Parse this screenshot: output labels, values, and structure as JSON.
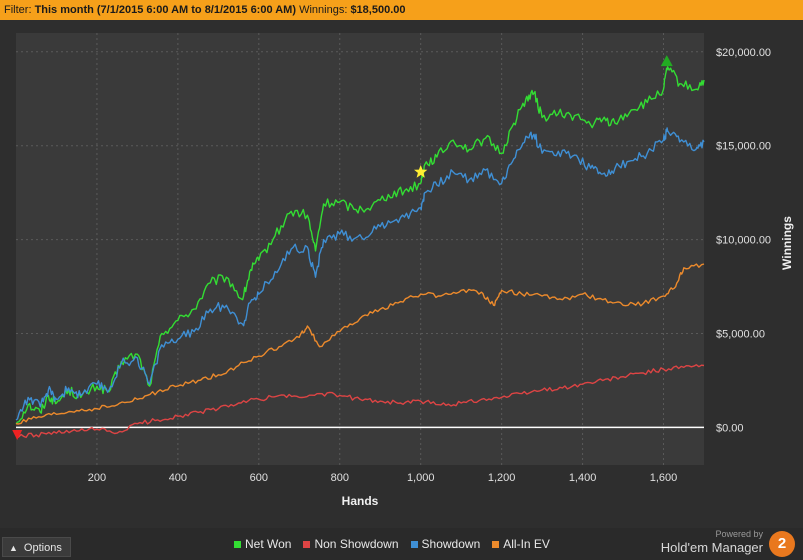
{
  "filter": {
    "label": "Filter:",
    "period": "This month (7/1/2015 6:00 AM to 8/1/2015 6:00 AM)",
    "winnings_label": "Winnings:",
    "winnings_value": "$18,500.00"
  },
  "footer": {
    "options_label": "Options",
    "powered_by": "Powered by",
    "brand_name": "Hold'em Manager",
    "brand_logo_text": "2"
  },
  "colors": {
    "background": "#2e2e2e",
    "filter_bar": "#f6a01a",
    "net_won": "#33dd33",
    "non_showdown": "#dd4444",
    "showdown": "#3f8fd4",
    "all_in_ev": "#ec8a2c",
    "zero_line": "#ffffff",
    "grid": "#5a5a5a"
  },
  "chart_data": {
    "type": "line",
    "xlabel": "Hands",
    "ylabel": "Winnings",
    "xlim": [
      0,
      1700
    ],
    "ylim": [
      -2000,
      21000
    ],
    "x_ticks": [
      200,
      400,
      600,
      800,
      1000,
      1200,
      1400,
      1600
    ],
    "x_tick_labels": [
      "200",
      "400",
      "600",
      "800",
      "1,000",
      "1,200",
      "1,400",
      "1,600"
    ],
    "y_ticks": [
      0,
      5000,
      10000,
      15000,
      20000
    ],
    "y_tick_labels": [
      "$0.00",
      "$5,000.00",
      "$10,000.00",
      "$15,000.00",
      "$20,000.00"
    ],
    "grid": true,
    "legend_position": "bottom",
    "markers": [
      {
        "name": "min-marker",
        "shape": "triangle-down",
        "color": "#ee2222",
        "x": 3,
        "y": -400
      },
      {
        "name": "star-marker",
        "shape": "star",
        "color": "#ffee33",
        "x": 1000,
        "y": 13600
      },
      {
        "name": "max-marker",
        "shape": "triangle-up",
        "color": "#22aa22",
        "x": 1608,
        "y": 19500
      }
    ],
    "series": [
      {
        "name": "Net Won",
        "color": "#33dd33",
        "x": [
          0,
          30,
          60,
          80,
          100,
          130,
          160,
          200,
          230,
          260,
          300,
          330,
          360,
          400,
          440,
          480,
          520,
          560,
          580,
          600,
          640,
          680,
          720,
          740,
          760,
          800,
          840,
          880,
          920,
          960,
          1000,
          1010,
          1040,
          1080,
          1120,
          1160,
          1200,
          1230,
          1260,
          1280,
          1300,
          1340,
          1380,
          1420,
          1450,
          1480,
          1520,
          1560,
          1600,
          1610,
          1640,
          1680,
          1700
        ],
        "values": [
          200,
          1200,
          800,
          1700,
          1300,
          2000,
          1600,
          2200,
          1900,
          3500,
          3900,
          2200,
          5000,
          5700,
          6300,
          7700,
          8000,
          6800,
          8400,
          8900,
          10200,
          11500,
          11300,
          9400,
          11900,
          12000,
          11600,
          11800,
          12400,
          12600,
          13000,
          14000,
          14400,
          15300,
          14800,
          15400,
          14600,
          16200,
          17500,
          17800,
          16500,
          16700,
          16600,
          16100,
          16400,
          16200,
          16900,
          17300,
          18000,
          19200,
          18300,
          18000,
          18500
        ]
      },
      {
        "name": "Non Showdown",
        "color": "#dd4444",
        "x": [
          0,
          50,
          100,
          150,
          200,
          250,
          300,
          350,
          400,
          450,
          500,
          550,
          600,
          650,
          700,
          750,
          800,
          850,
          900,
          950,
          1000,
          1050,
          1100,
          1150,
          1200,
          1250,
          1300,
          1350,
          1400,
          1450,
          1500,
          1550,
          1600,
          1650,
          1700
        ],
        "values": [
          -500,
          -400,
          -300,
          -200,
          -100,
          -300,
          200,
          400,
          600,
          800,
          1000,
          1300,
          1500,
          1700,
          1600,
          1800,
          1700,
          1500,
          1400,
          1300,
          1400,
          1200,
          1300,
          1500,
          1600,
          1800,
          2000,
          2100,
          2300,
          2500,
          2700,
          2900,
          3100,
          3200,
          3300
        ]
      },
      {
        "name": "Showdown",
        "color": "#3f8fd4",
        "x": [
          0,
          30,
          60,
          80,
          100,
          130,
          160,
          200,
          230,
          260,
          300,
          330,
          360,
          400,
          440,
          480,
          520,
          560,
          580,
          600,
          640,
          680,
          720,
          740,
          760,
          800,
          840,
          880,
          920,
          960,
          1000,
          1010,
          1040,
          1080,
          1120,
          1160,
          1200,
          1230,
          1260,
          1280,
          1300,
          1340,
          1380,
          1420,
          1450,
          1480,
          1520,
          1560,
          1600,
          1610,
          1640,
          1680,
          1700
        ],
        "values": [
          400,
          1600,
          1100,
          2000,
          1500,
          2100,
          1700,
          2300,
          2000,
          3400,
          3700,
          2300,
          4400,
          4700,
          5100,
          6300,
          6500,
          5500,
          6700,
          7100,
          8300,
          9500,
          9600,
          8000,
          10000,
          10300,
          10100,
          10400,
          11000,
          11200,
          11700,
          12500,
          12900,
          13600,
          13200,
          13700,
          13000,
          14300,
          15500,
          15600,
          14600,
          14700,
          14500,
          13800,
          13500,
          13800,
          14200,
          14600,
          15300,
          15800,
          15200,
          14800,
          15200
        ]
      },
      {
        "name": "All-In EV",
        "color": "#ec8a2c",
        "x": [
          0,
          50,
          100,
          150,
          200,
          250,
          300,
          350,
          400,
          450,
          500,
          550,
          600,
          650,
          700,
          720,
          750,
          800,
          850,
          900,
          950,
          1000,
          1050,
          1100,
          1150,
          1180,
          1200,
          1250,
          1300,
          1350,
          1400,
          1450,
          1500,
          1550,
          1600,
          1630,
          1650,
          1700
        ],
        "values": [
          200,
          500,
          700,
          900,
          1000,
          1200,
          1500,
          1900,
          2200,
          2500,
          2800,
          3300,
          3800,
          4300,
          4800,
          5400,
          4300,
          5100,
          5800,
          6300,
          6700,
          7100,
          7000,
          7300,
          7200,
          6500,
          7300,
          7100,
          7000,
          6800,
          7100,
          6800,
          6500,
          6600,
          7000,
          7500,
          8500,
          8700
        ]
      }
    ]
  }
}
